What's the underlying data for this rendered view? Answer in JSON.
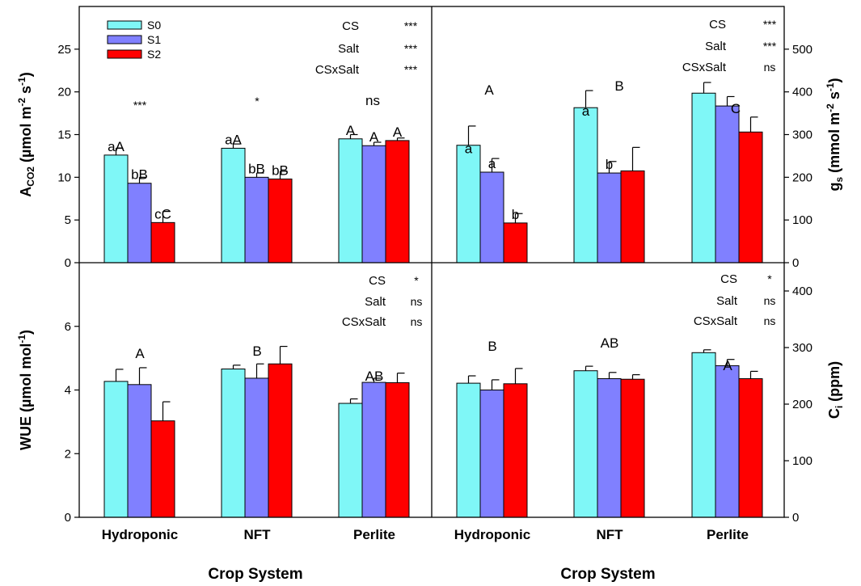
{
  "colors": {
    "S0": "#7ff7f7",
    "S1": "#8080ff",
    "S2": "#ff0000"
  },
  "legend": [
    "S0",
    "S1",
    "S2"
  ],
  "xtitle": "Crop System",
  "chart_data": [
    {
      "id": "acO2",
      "type": "bar",
      "categories": [
        "Hydroponic",
        "NFT",
        "Perlite"
      ],
      "ylim": [
        0,
        30
      ],
      "yticks": [
        "0",
        "5",
        "10",
        "15",
        "20",
        "25"
      ],
      "ylabel_main": "A",
      "ylabel_sub": "CO2",
      "ylabel_rest": " (µmol m",
      "ylabel_sup1": "-2",
      "ylabel_mid": " s",
      "ylabel_sup2": "-1",
      "ylabel_end": ")",
      "series": [
        {
          "name": "S0",
          "values": [
            12.6,
            13.4,
            14.5
          ],
          "errors": [
            0.8,
            0.5,
            0.5
          ],
          "labels": [
            "aA",
            "aA",
            "A"
          ]
        },
        {
          "name": "S1",
          "values": [
            9.3,
            10.0,
            13.7
          ],
          "errors": [
            0.7,
            0.5,
            0.4
          ],
          "labels": [
            "bB",
            "bB",
            "A"
          ]
        },
        {
          "name": "S2",
          "values": [
            4.7,
            9.8,
            14.3
          ],
          "errors": [
            1.3,
            0.9,
            0.3
          ],
          "labels": [
            "cC",
            "bB",
            "A"
          ]
        }
      ],
      "group_labels": [
        "***",
        "*",
        "ns"
      ],
      "stats": [
        {
          "name": "CS",
          "sig": "***"
        },
        {
          "name": "Salt",
          "sig": "***"
        },
        {
          "name": "CSxSalt",
          "sig": "***"
        }
      ]
    },
    {
      "id": "gs",
      "type": "bar",
      "categories": [
        "Hydroponic",
        "NFT",
        "Perlite"
      ],
      "ylim": [
        0,
        600
      ],
      "yticks": [
        "0",
        "100",
        "200",
        "300",
        "400",
        "500"
      ],
      "ylabel_main": "g",
      "ylabel_sub": "s",
      "ylabel_rest": " (mmol m",
      "ylabel_sup1": "-2",
      "ylabel_mid": " s",
      "ylabel_sup2": "-1",
      "ylabel_end": ")",
      "series": [
        {
          "name": "S0",
          "values": [
            275,
            363,
            397
          ],
          "errors": [
            45,
            40,
            25
          ],
          "labels": [
            "a",
            "a",
            ""
          ]
        },
        {
          "name": "S1",
          "values": [
            212,
            210,
            367
          ],
          "errors": [
            32,
            27,
            22
          ],
          "labels": [
            "a",
            "b",
            ""
          ]
        },
        {
          "name": "S2",
          "values": [
            93,
            215,
            306
          ],
          "errors": [
            22,
            55,
            35
          ],
          "labels": [
            "b",
            "",
            ""
          ]
        }
      ],
      "group_labels": [
        "A",
        "B",
        "C"
      ],
      "stats": [
        {
          "name": "CS",
          "sig": "***"
        },
        {
          "name": "Salt",
          "sig": "***"
        },
        {
          "name": "CSxSalt",
          "sig": "ns"
        }
      ]
    },
    {
      "id": "wue",
      "type": "bar",
      "categories": [
        "Hydroponic",
        "NFT",
        "Perlite"
      ],
      "ylim": [
        0,
        8
      ],
      "yticks": [
        "0",
        "2",
        "4",
        "6"
      ],
      "ylabel_main": "WUE (µmol mol",
      "ylabel_sup1": "-1",
      "ylabel_end": ")",
      "series": [
        {
          "name": "S0",
          "values": [
            4.27,
            4.66,
            3.58
          ],
          "errors": [
            0.38,
            0.12,
            0.14
          ]
        },
        {
          "name": "S1",
          "values": [
            4.17,
            4.37,
            4.24
          ],
          "errors": [
            0.53,
            0.45,
            0.13
          ]
        },
        {
          "name": "S2",
          "values": [
            3.03,
            4.82,
            4.23
          ],
          "errors": [
            0.6,
            0.55,
            0.3
          ]
        }
      ],
      "group_labels": [
        "A",
        "B",
        "AB"
      ],
      "stats": [
        {
          "name": "CS",
          "sig": "*"
        },
        {
          "name": "Salt",
          "sig": "ns"
        },
        {
          "name": "CSxSalt",
          "sig": "ns"
        }
      ]
    },
    {
      "id": "ci",
      "type": "bar",
      "categories": [
        "Hydroponic",
        "NFT",
        "Perlite"
      ],
      "ylim": [
        0,
        450
      ],
      "yticks": [
        "0",
        "100",
        "200",
        "300",
        "400"
      ],
      "ylabel_main": "C",
      "ylabel_sub": "i",
      "ylabel_rest": " (ppm)",
      "series": [
        {
          "name": "S0",
          "values": [
            237,
            259,
            291
          ],
          "errors": [
            13,
            8,
            5
          ]
        },
        {
          "name": "S1",
          "values": [
            225,
            245,
            268
          ],
          "errors": [
            18,
            11,
            11
          ]
        },
        {
          "name": "S2",
          "values": [
            236,
            244,
            245
          ],
          "errors": [
            27,
            8,
            13
          ]
        }
      ],
      "group_labels": [
        "B",
        "AB",
        "A"
      ],
      "stats": [
        {
          "name": "CS",
          "sig": "*"
        },
        {
          "name": "Salt",
          "sig": "ns"
        },
        {
          "name": "CSxSalt",
          "sig": "ns"
        }
      ]
    }
  ]
}
